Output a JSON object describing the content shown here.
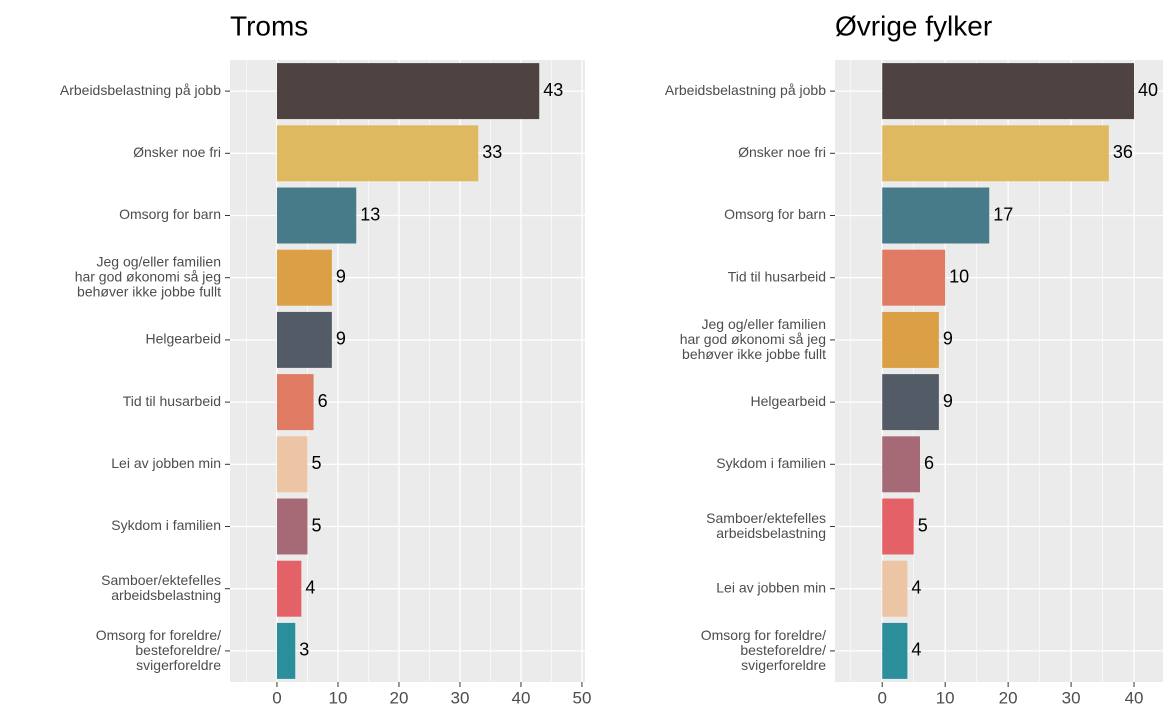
{
  "chart_data": [
    {
      "type": "bar",
      "orientation": "horizontal",
      "title": "Troms",
      "categories": [
        "Arbeidsbelastning på jobb",
        "Ønsker noe fri",
        "Omsorg for barn",
        "Jeg og/eller familien\nhar god økonomi så jeg\nbehøver ikke jobbe fullt",
        "Helgearbeid",
        "Tid til husarbeid",
        "Lei av jobben min",
        "Sykdom i familien",
        "Samboer/ektefelles\narbeidsbelastning",
        "Omsorg for foreldre/\nbesteforeldre/\nsvigerforeldre"
      ],
      "values": [
        43,
        33,
        13,
        9,
        9,
        6,
        5,
        5,
        4,
        3
      ],
      "colors": [
        "#4e4340",
        "#dfb95f",
        "#477b8a",
        "#dba046",
        "#535c66",
        "#e07b63",
        "#ecc6a4",
        "#a66a76",
        "#e46267",
        "#2b8f9b"
      ],
      "xlim": [
        -7.7,
        50.5
      ],
      "xticks": [
        0,
        10,
        20,
        30,
        40,
        50
      ],
      "grid": true
    },
    {
      "type": "bar",
      "orientation": "horizontal",
      "title": "Øvrige fylker",
      "categories": [
        "Arbeidsbelastning på jobb",
        "Ønsker noe fri",
        "Omsorg for barn",
        "Tid til husarbeid",
        "Jeg og/eller familien\nhar god økonomi så jeg\nbehøver ikke jobbe fullt",
        "Helgearbeid",
        "Sykdom i familien",
        "Samboer/ektefelles\narbeidsbelastning",
        "Lei av jobben min",
        "Omsorg for foreldre/\nbesteforeldre/\nsvigerforeldre"
      ],
      "values": [
        40,
        36,
        17,
        10,
        9,
        9,
        6,
        5,
        4,
        4
      ],
      "colors": [
        "#4e4340",
        "#dfb95f",
        "#477b8a",
        "#e07b63",
        "#dba046",
        "#535c66",
        "#a66a76",
        "#e46267",
        "#ecc6a4",
        "#2b8f9b"
      ],
      "xlim": [
        -7.5,
        44.6
      ],
      "xticks": [
        0,
        10,
        20,
        30,
        40
      ],
      "grid": true
    }
  ]
}
